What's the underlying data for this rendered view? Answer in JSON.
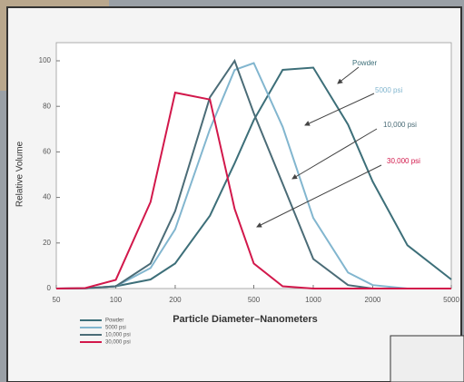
{
  "chart_data": {
    "type": "line",
    "y_label": "Relative Volume",
    "x_label": "Particle Diameter–Nanometers",
    "xscale": "log",
    "x": [
      50,
      70,
      100,
      150,
      200,
      300,
      400,
      500,
      700,
      1000,
      1500,
      2000,
      3000,
      5000
    ],
    "series": [
      {
        "name": "Powder",
        "color": "#3d6f79",
        "values": [
          0,
          0.1,
          1,
          4,
          11,
          32,
          55,
          74,
          96,
          97,
          72,
          47,
          19,
          4
        ]
      },
      {
        "name": "5000 psi",
        "color": "#82b6cf",
        "values": [
          0,
          0.1,
          1,
          9,
          26,
          70,
          96,
          99,
          71,
          31,
          7,
          1.5,
          0,
          0
        ]
      },
      {
        "name": "10,000 psi",
        "color": "#4b6c77",
        "values": [
          0,
          0.1,
          1,
          11,
          34,
          84,
          100,
          77,
          46,
          13,
          1.5,
          0,
          0,
          0
        ]
      },
      {
        "name": "30,000 psi",
        "color": "#d2184b",
        "values": [
          0,
          0.2,
          3.8,
          38,
          86,
          83,
          35,
          11,
          1,
          0,
          0,
          0,
          0,
          0
        ]
      }
    ],
    "annotations": [
      {
        "text": "Powder",
        "color": "#3d6f79"
      },
      {
        "text": "5000 psi",
        "color": "#82b6cf"
      },
      {
        "text": "10,000 psi",
        "color": "#4b6c77"
      },
      {
        "text": "30,000 psi",
        "color": "#d2184b"
      }
    ],
    "xlim": [
      50,
      5000
    ],
    "ylim": [
      0,
      100
    ],
    "xticks": [
      50,
      100,
      200,
      500,
      1000,
      2000,
      5000
    ],
    "yticks": [
      0,
      20,
      40,
      60,
      80,
      100
    ]
  }
}
